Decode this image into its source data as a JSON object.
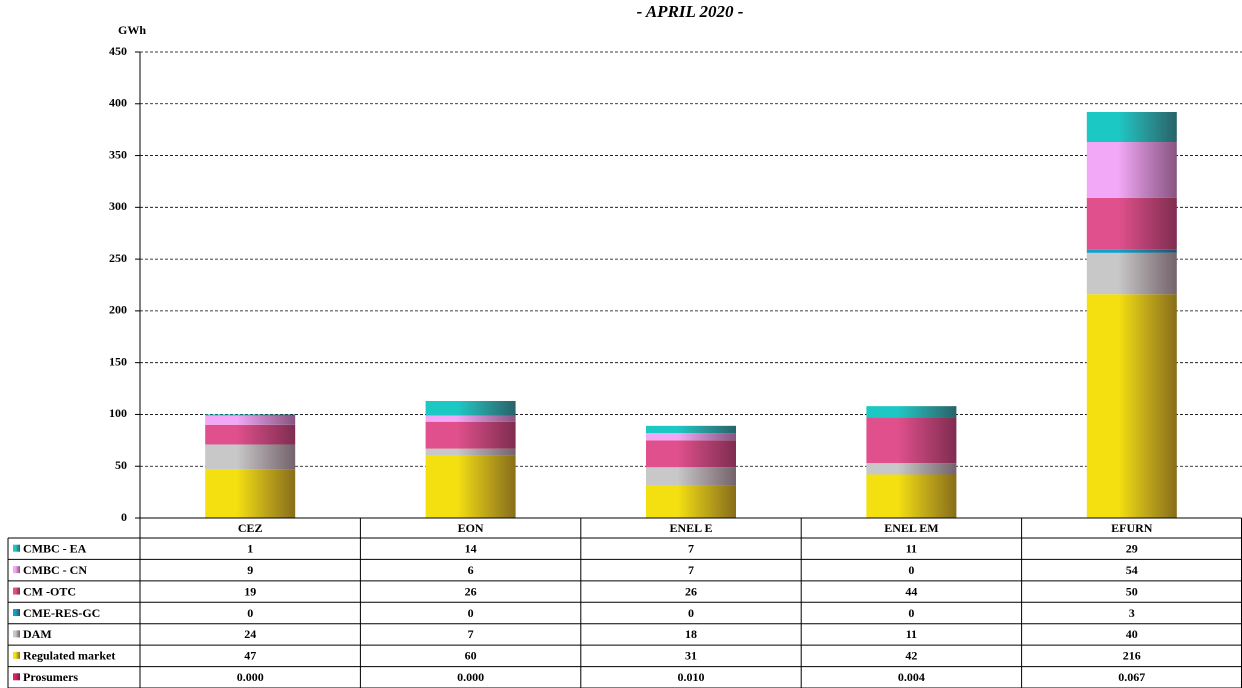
{
  "chart_data": {
    "type": "stacked_bar",
    "title": "- APRIL 2020 -",
    "y_label": "GWh",
    "categories": [
      "CEZ",
      "EON",
      "ENEL E",
      "ENEL EM",
      "EFURN"
    ],
    "series": [
      {
        "name": "CMBC - EA",
        "color": "#1cc8c4",
        "values": [
          1,
          14,
          7,
          11,
          29
        ]
      },
      {
        "name": "CMBC - CN",
        "color": "#f2a8f6",
        "values": [
          9,
          6,
          7,
          0,
          54
        ]
      },
      {
        "name": "CM -OTC",
        "color": "#e0508c",
        "values": [
          19,
          26,
          26,
          44,
          50
        ]
      },
      {
        "name": "CME-RES-GC",
        "color": "#14a0c8",
        "values": [
          0,
          0,
          0,
          0,
          3
        ]
      },
      {
        "name": "DAM",
        "color": "#c8c8c8",
        "values": [
          24,
          7,
          18,
          11,
          40
        ]
      },
      {
        "name": "Regulated market",
        "color": "#f4e010",
        "values": [
          47,
          60,
          31,
          42,
          216
        ]
      },
      {
        "name": "Prosumers",
        "color": "#d8206c",
        "values": [
          0,
          0,
          0.01,
          0.004,
          0.067
        ],
        "value_labels": [
          "0.000",
          "0.000",
          "0.010",
          "0.004",
          "0.067"
        ]
      }
    ],
    "ylim": [
      0,
      450
    ],
    "yticks": [
      0,
      50,
      100,
      150,
      200,
      250,
      300,
      350,
      400,
      450
    ],
    "grid": true
  }
}
